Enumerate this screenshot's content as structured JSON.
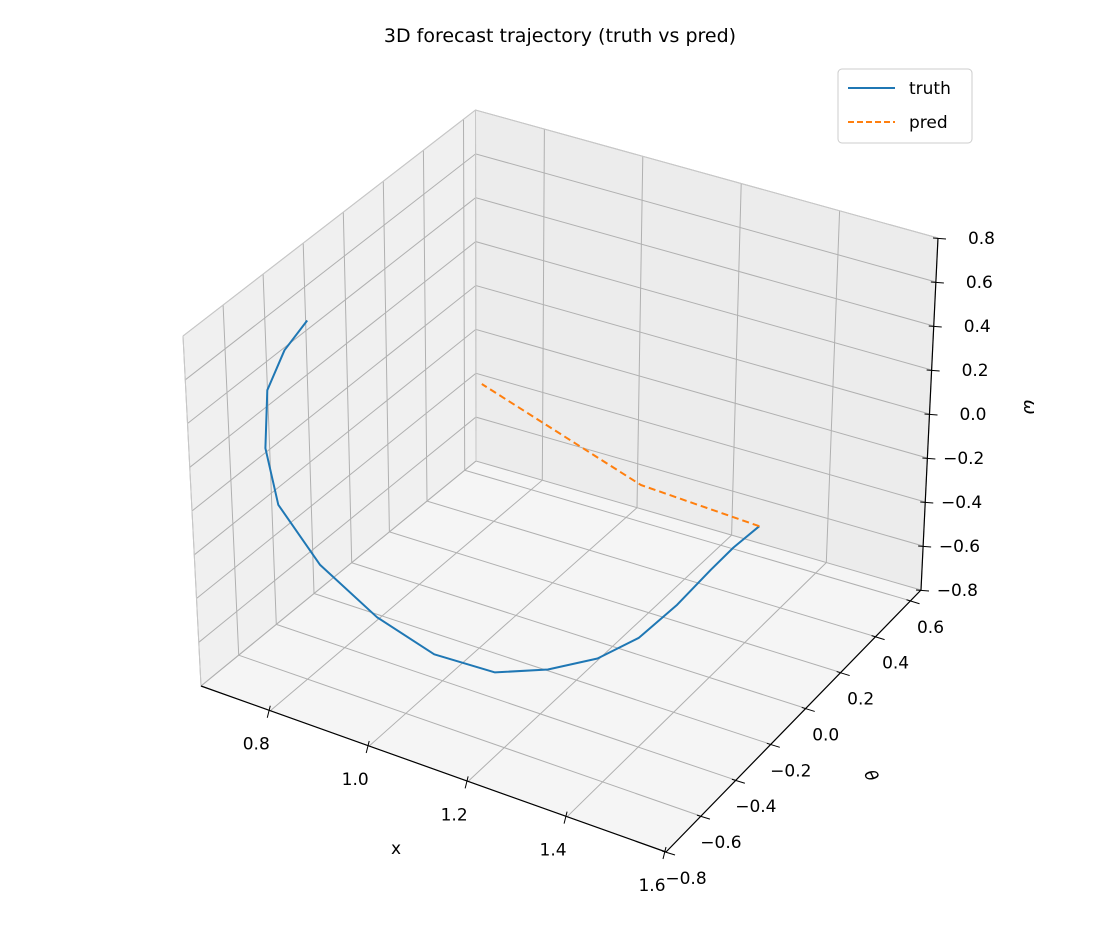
{
  "chart_data": {
    "type": "line",
    "projection": "3d",
    "title": "3D forecast trajectory (truth vs pred)",
    "xlabel": "x",
    "ylabel": "θ",
    "zlabel": "ω",
    "xlim": [
      0.66,
      1.6
    ],
    "ylim": [
      -0.8,
      0.66
    ],
    "zlim": [
      -0.8,
      0.8
    ],
    "xticks": [
      "0.8",
      "1.0",
      "1.2",
      "1.4",
      "1.6"
    ],
    "xtick_values": [
      0.8,
      1.0,
      1.2,
      1.4,
      1.6
    ],
    "yticks": [
      "−0.8",
      "−0.6",
      "−0.4",
      "−0.2",
      "0.0",
      "0.2",
      "0.4",
      "0.6"
    ],
    "ytick_values": [
      -0.8,
      -0.6,
      -0.4,
      -0.2,
      0.0,
      0.2,
      0.4,
      0.6
    ],
    "zticks": [
      "−0.8",
      "−0.6",
      "−0.4",
      "−0.2",
      "0.0",
      "0.2",
      "0.4",
      "0.6",
      "0.8"
    ],
    "ztick_values": [
      -0.8,
      -0.6,
      -0.4,
      -0.2,
      0.0,
      0.2,
      0.4,
      0.6,
      0.8
    ],
    "grid": true,
    "legend": "top-right",
    "series": [
      {
        "name": "truth",
        "style": "solid",
        "color": "#1f77b4",
        "x": [
          0.7,
          0.685,
          0.68,
          0.7,
          0.75,
          0.85,
          0.97,
          1.08,
          1.18,
          1.25,
          1.31,
          1.35,
          1.38,
          1.4,
          1.42,
          1.45
        ],
        "y": [
          -0.29,
          -0.37,
          -0.45,
          -0.52,
          -0.59,
          -0.64,
          -0.66,
          -0.65,
          -0.59,
          -0.49,
          -0.38,
          -0.26,
          -0.13,
          0.0,
          0.07,
          0.13
        ],
        "z": [
          0.54,
          0.45,
          0.32,
          0.12,
          -0.05,
          -0.21,
          -0.34,
          -0.43,
          -0.48,
          -0.49,
          -0.48,
          -0.45,
          -0.38,
          -0.31,
          -0.25,
          -0.18
        ]
      },
      {
        "name": "pred",
        "style": "dashed",
        "color": "#ff7f0e",
        "x": [
          1.45,
          1.2,
          0.78
        ],
        "y": [
          0.13,
          0.15,
          0.39
        ],
        "z": [
          -0.18,
          -0.18,
          -0.18
        ]
      }
    ]
  }
}
